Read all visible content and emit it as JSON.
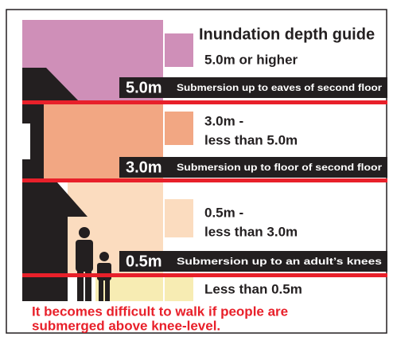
{
  "title": "Inundation depth guide",
  "legend": [
    {
      "lines": [
        "5.0m or higher"
      ]
    },
    {
      "lines": [
        "3.0m -",
        "less than 5.0m"
      ]
    },
    {
      "lines": [
        "0.5m -",
        "less than 3.0m"
      ]
    },
    {
      "lines": [
        "Less than 0.5m"
      ]
    }
  ],
  "markers": [
    {
      "depth": "5.0m",
      "description": "Submersion up to eaves of second floor"
    },
    {
      "depth": "3.0m",
      "description": "Submersion up to floor of second floor"
    },
    {
      "depth": "0.5m",
      "description": "Submersion up to an adult’s knees"
    }
  ],
  "note": [
    "It becomes difficult to walk if people are",
    "submerged above knee-level."
  ]
}
